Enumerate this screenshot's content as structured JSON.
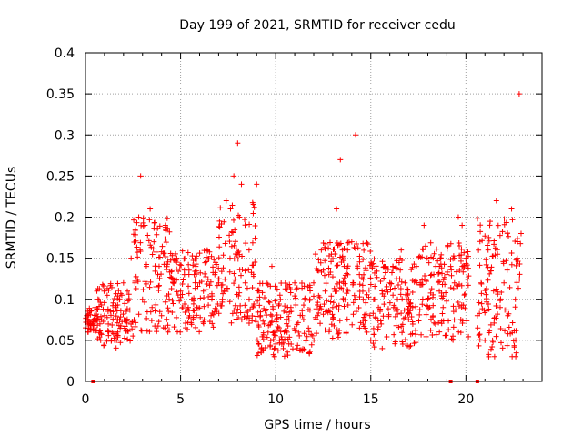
{
  "chart_data": {
    "type": "scatter",
    "title": "Day 199 of 2021, SRMTID for receiver cedu",
    "xlabel": "GPS time / hours",
    "ylabel": "SRMTID / TECUs",
    "xlim": [
      0,
      24
    ],
    "ylim": [
      0,
      0.4
    ],
    "grid": true,
    "x_ticks": [
      0,
      5,
      10,
      15,
      20
    ],
    "x_tick_labels": [
      "0",
      "5",
      "10",
      "15",
      "20"
    ],
    "y_ticks": [
      0,
      0.05,
      0.1,
      0.15,
      0.2,
      0.25,
      0.3,
      0.35,
      0.4
    ],
    "y_tick_labels": [
      "0",
      "0.05",
      "0.1",
      "0.15",
      "0.2",
      "0.25",
      "0.3",
      "0.35",
      "0.4"
    ],
    "marker": "+",
    "color": "#ff0000",
    "series": [
      {
        "name": "SRMTID",
        "x": [
          0.0,
          0.1,
          0.5,
          0.6,
          0.8,
          1.0,
          1.2,
          1.4,
          1.6,
          1.8,
          2.0,
          2.2,
          2.4,
          2.6,
          2.8,
          2.9,
          3.0,
          3.2,
          3.4,
          3.5,
          3.6,
          3.8,
          4.0,
          4.2,
          4.4,
          4.6,
          4.8,
          5.0,
          5.2,
          5.4,
          5.6,
          5.8,
          6.0,
          6.2,
          6.4,
          6.6,
          6.8,
          7.0,
          7.2,
          7.4,
          7.6,
          7.8,
          8.0,
          8.1,
          8.2,
          8.4,
          8.6,
          8.8,
          9.0,
          9.2,
          9.4,
          9.6,
          9.8,
          10.0,
          10.2,
          10.4,
          10.6,
          10.8,
          11.0,
          11.2,
          11.4,
          11.6,
          11.8,
          12.0,
          12.2,
          12.4,
          12.6,
          12.8,
          13.0,
          13.2,
          13.4,
          13.6,
          13.8,
          14.0,
          14.2,
          14.4,
          14.6,
          14.8,
          15.0,
          15.2,
          15.4,
          15.6,
          15.8,
          16.0,
          16.2,
          16.4,
          16.6,
          16.8,
          17.0,
          17.2,
          17.4,
          17.6,
          17.8,
          18.0,
          18.2,
          18.4,
          18.6,
          18.8,
          19.0,
          19.2,
          19.4,
          19.6,
          19.8,
          20.0,
          20.6,
          20.8,
          21.0,
          21.2,
          21.4,
          21.6,
          21.8,
          22.0,
          22.2,
          22.4,
          22.6,
          22.7,
          22.8,
          22.9
        ],
        "y": [
          0.075,
          0.07,
          0.09,
          0.11,
          0.05,
          0.08,
          0.07,
          0.06,
          0.09,
          0.1,
          0.12,
          0.11,
          0.15,
          0.12,
          0.2,
          0.25,
          0.1,
          0.14,
          0.21,
          0.09,
          0.17,
          0.13,
          0.08,
          0.19,
          0.1,
          0.12,
          0.15,
          0.11,
          0.13,
          0.09,
          0.1,
          0.14,
          0.12,
          0.11,
          0.16,
          0.08,
          0.13,
          0.12,
          0.1,
          0.22,
          0.15,
          0.25,
          0.29,
          0.2,
          0.24,
          0.12,
          0.16,
          0.09,
          0.24,
          0.08,
          0.07,
          0.06,
          0.14,
          0.04,
          0.05,
          0.04,
          0.06,
          0.09,
          0.12,
          0.06,
          0.08,
          0.05,
          0.1,
          0.12,
          0.08,
          0.16,
          0.11,
          0.13,
          0.09,
          0.21,
          0.27,
          0.14,
          0.11,
          0.17,
          0.3,
          0.13,
          0.1,
          0.06,
          0.05,
          0.1,
          0.09,
          0.04,
          0.14,
          0.12,
          0.09,
          0.1,
          0.16,
          0.12,
          0.1,
          0.09,
          0.14,
          0.12,
          0.19,
          0.1,
          0.13,
          0.07,
          0.11,
          0.09,
          0.13,
          0.14,
          0.12,
          0.2,
          0.19,
          0.15,
          0.08,
          0.12,
          0.05,
          0.03,
          0.05,
          0.22,
          0.09,
          0.12,
          0.08,
          0.21,
          0.1,
          0.15,
          0.35,
          0.18
        ],
        "clusters": [
          [
            0.0,
            0.8,
            0.06,
            0.09
          ],
          [
            0.5,
            2.5,
            0.04,
            0.12
          ],
          [
            2.5,
            4.5,
            0.06,
            0.2
          ],
          [
            4.5,
            7.0,
            0.06,
            0.16
          ],
          [
            7.0,
            9.0,
            0.07,
            0.22
          ],
          [
            9.0,
            12.0,
            0.03,
            0.12
          ],
          [
            12.0,
            15.0,
            0.05,
            0.17
          ],
          [
            15.0,
            17.5,
            0.04,
            0.15
          ],
          [
            17.5,
            20.2,
            0.05,
            0.17
          ],
          [
            20.6,
            22.9,
            0.03,
            0.2
          ]
        ],
        "gaps": [
          [
            20.2,
            20.6
          ]
        ],
        "zero_markers_x": [
          0.4,
          19.2,
          20.6
        ]
      }
    ]
  }
}
